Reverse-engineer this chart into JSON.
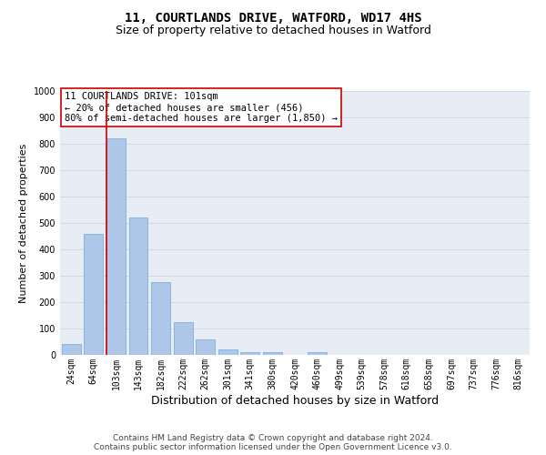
{
  "title1": "11, COURTLANDS DRIVE, WATFORD, WD17 4HS",
  "title2": "Size of property relative to detached houses in Watford",
  "xlabel": "Distribution of detached houses by size in Watford",
  "ylabel": "Number of detached properties",
  "categories": [
    "24sqm",
    "64sqm",
    "103sqm",
    "143sqm",
    "182sqm",
    "222sqm",
    "262sqm",
    "301sqm",
    "341sqm",
    "380sqm",
    "420sqm",
    "460sqm",
    "499sqm",
    "539sqm",
    "578sqm",
    "618sqm",
    "658sqm",
    "697sqm",
    "737sqm",
    "776sqm",
    "816sqm"
  ],
  "values": [
    40,
    460,
    820,
    520,
    275,
    125,
    57,
    20,
    12,
    12,
    0,
    10,
    0,
    0,
    0,
    0,
    0,
    0,
    0,
    0,
    0
  ],
  "bar_color": "#aec6e8",
  "bar_edge_color": "#6aabd2",
  "vline_color": "#cc0000",
  "annotation_text": "11 COURTLANDS DRIVE: 101sqm\n← 20% of detached houses are smaller (456)\n80% of semi-detached houses are larger (1,850) →",
  "annotation_box_color": "#ffffff",
  "annotation_box_edge_color": "#cc0000",
  "ylim": [
    0,
    1000
  ],
  "yticks": [
    0,
    100,
    200,
    300,
    400,
    500,
    600,
    700,
    800,
    900,
    1000
  ],
  "grid_color": "#d0d8e8",
  "bg_color": "#e8edf5",
  "footer1": "Contains HM Land Registry data © Crown copyright and database right 2024.",
  "footer2": "Contains public sector information licensed under the Open Government Licence v3.0.",
  "title_fontsize": 10,
  "subtitle_fontsize": 9,
  "xlabel_fontsize": 9,
  "ylabel_fontsize": 8,
  "tick_fontsize": 7,
  "annotation_fontsize": 7.5,
  "footer_fontsize": 6.5
}
